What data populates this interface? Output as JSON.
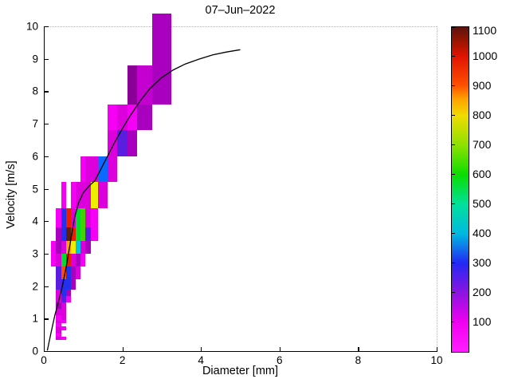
{
  "title": "07–Jun–2022",
  "axes": {
    "x_label": "Diameter [mm]",
    "y_label": "Velocity [m/s]",
    "x_ticks": [
      0,
      2,
      4,
      6,
      8,
      10
    ],
    "y_ticks": [
      0,
      1,
      2,
      3,
      4,
      5,
      6,
      7,
      8,
      9,
      10
    ],
    "x_range": [
      0,
      10
    ],
    "y_range": [
      0,
      10
    ]
  },
  "colorbar": {
    "range": [
      0,
      1100
    ],
    "tick_values": [
      100,
      200,
      300,
      400,
      500,
      600,
      700,
      800,
      900,
      1000,
      1100
    ],
    "gradient_stops": [
      {
        "pct": 0,
        "color": "#FF1EFF"
      },
      {
        "pct": 9.1,
        "color": "#F000F0"
      },
      {
        "pct": 18.2,
        "color": "#8C14E1"
      },
      {
        "pct": 27.3,
        "color": "#2328F5"
      },
      {
        "pct": 36.4,
        "color": "#00B9E1"
      },
      {
        "pct": 45.5,
        "color": "#00E19B"
      },
      {
        "pct": 54.5,
        "color": "#0ADC00"
      },
      {
        "pct": 63.6,
        "color": "#8CE100"
      },
      {
        "pct": 72.7,
        "color": "#F0DC00"
      },
      {
        "pct": 78,
        "color": "#FFA000"
      },
      {
        "pct": 82,
        "color": "#FF5000"
      },
      {
        "pct": 90.9,
        "color": "#E11400"
      },
      {
        "pct": 96,
        "color": "#961400"
      },
      {
        "pct": 100,
        "color": "#5A1410"
      }
    ]
  },
  "palette": {
    "m1": "#F500F5",
    "m2": "#DC00DC",
    "p0": "#C300CF",
    "p1": "#A800BE",
    "p2": "#8A0096",
    "vi": "#5A1EE1",
    "bl": "#2330EE",
    "bb": "#0A69FF",
    "cy": "#00C3E1",
    "g2": "#46D200",
    "gr": "#00DC28",
    "ye": "#EEEE00",
    "or": "#FFA300",
    "ro": "#FF4B00",
    "re": "#EB1E00",
    "ma": "#5F1E0F"
  },
  "chart_data": {
    "type": "heatmap",
    "title": "07–Jun–2022",
    "xlabel": "Diameter [mm]",
    "ylabel": "Velocity [m/s]",
    "xlim": [
      0,
      10
    ],
    "ylim": [
      0,
      10
    ],
    "colorbar_range": [
      0,
      1100
    ],
    "diameter_class_edges_mm": [
      0.187,
      0.312,
      0.437,
      0.562,
      0.687,
      0.812,
      0.937,
      1.062,
      1.187,
      1.375,
      1.625,
      1.875,
      2.125,
      2.375,
      2.75,
      3.25
    ],
    "velocity_class_edges_ms": [
      0.35,
      0.45,
      0.55,
      0.65,
      0.75,
      0.85,
      0.95,
      1.1,
      1.3,
      1.5,
      1.7,
      1.9,
      2.2,
      2.6,
      3.0,
      3.4,
      3.8,
      4.4,
      5.2,
      6.0,
      6.8,
      7.6,
      8.8,
      10.4
    ],
    "cells": [
      {
        "d0": 0.312,
        "d1": 0.437,
        "v0": 0.35,
        "v1": 0.45,
        "value": 110,
        "c": "m2"
      },
      {
        "d0": 0.437,
        "d1": 0.562,
        "v0": 0.35,
        "v1": 0.45,
        "value": 60,
        "c": "m1"
      },
      {
        "d0": 0.312,
        "d1": 0.437,
        "v0": 0.45,
        "v1": 0.55,
        "value": 60,
        "c": "m1"
      },
      {
        "d0": 0.312,
        "d1": 0.437,
        "v0": 0.55,
        "v1": 0.65,
        "value": 110,
        "c": "m2"
      },
      {
        "d0": 0.312,
        "d1": 0.437,
        "v0": 0.65,
        "v1": 0.75,
        "value": 110,
        "c": "m2"
      },
      {
        "d0": 0.437,
        "d1": 0.562,
        "v0": 0.65,
        "v1": 0.75,
        "value": 60,
        "c": "m1"
      },
      {
        "d0": 0.312,
        "d1": 0.437,
        "v0": 0.75,
        "v1": 0.85,
        "value": 60,
        "c": "m1"
      },
      {
        "d0": 0.312,
        "d1": 0.437,
        "v0": 0.85,
        "v1": 0.95,
        "value": 110,
        "c": "m2"
      },
      {
        "d0": 0.437,
        "d1": 0.562,
        "v0": 0.85,
        "v1": 0.95,
        "value": 60,
        "c": "m1"
      },
      {
        "d0": 0.312,
        "d1": 0.437,
        "v0": 0.95,
        "v1": 1.1,
        "value": 60,
        "c": "m1"
      },
      {
        "d0": 0.437,
        "d1": 0.562,
        "v0": 0.95,
        "v1": 1.1,
        "value": 110,
        "c": "m2"
      },
      {
        "d0": 0.312,
        "d1": 0.437,
        "v0": 1.1,
        "v1": 1.3,
        "value": 110,
        "c": "m2"
      },
      {
        "d0": 0.437,
        "d1": 0.562,
        "v0": 1.1,
        "v1": 1.3,
        "value": 110,
        "c": "m2"
      },
      {
        "d0": 0.312,
        "d1": 0.437,
        "v0": 1.3,
        "v1": 1.5,
        "value": 160,
        "c": "p1"
      },
      {
        "d0": 0.437,
        "d1": 0.562,
        "v0": 1.3,
        "v1": 1.5,
        "value": 110,
        "c": "m2"
      },
      {
        "d0": 0.312,
        "d1": 0.437,
        "v0": 1.5,
        "v1": 1.7,
        "value": 110,
        "c": "m2"
      },
      {
        "d0": 0.437,
        "d1": 0.562,
        "v0": 1.5,
        "v1": 1.7,
        "value": 250,
        "c": "vi"
      },
      {
        "d0": 0.562,
        "d1": 0.687,
        "v0": 1.5,
        "v1": 1.7,
        "value": 60,
        "c": "m1"
      },
      {
        "d0": 0.312,
        "d1": 0.437,
        "v0": 1.7,
        "v1": 1.9,
        "value": 110,
        "c": "m2"
      },
      {
        "d0": 0.437,
        "d1": 0.562,
        "v0": 1.7,
        "v1": 1.9,
        "value": 300,
        "c": "bl"
      },
      {
        "d0": 0.562,
        "d1": 0.687,
        "v0": 1.7,
        "v1": 1.9,
        "value": 160,
        "c": "p1"
      },
      {
        "d0": 0.312,
        "d1": 0.437,
        "v0": 1.9,
        "v1": 2.2,
        "value": 250,
        "c": "vi"
      },
      {
        "d0": 0.437,
        "d1": 0.562,
        "v0": 1.9,
        "v1": 2.2,
        "value": 300,
        "c": "bl"
      },
      {
        "d0": 0.562,
        "d1": 0.687,
        "v0": 1.9,
        "v1": 2.2,
        "value": 300,
        "c": "bl"
      },
      {
        "d0": 0.687,
        "d1": 0.812,
        "v0": 1.9,
        "v1": 2.2,
        "value": 160,
        "c": "p1"
      },
      {
        "d0": 0.312,
        "d1": 0.437,
        "v0": 2.2,
        "v1": 2.6,
        "value": 250,
        "c": "vi"
      },
      {
        "d0": 0.437,
        "d1": 0.562,
        "v0": 2.2,
        "v1": 2.6,
        "value": 890,
        "c": "ro"
      },
      {
        "d0": 0.562,
        "d1": 0.687,
        "v0": 2.2,
        "v1": 2.6,
        "value": 300,
        "c": "bl"
      },
      {
        "d0": 0.687,
        "d1": 0.812,
        "v0": 2.2,
        "v1": 2.6,
        "value": 160,
        "c": "p1"
      },
      {
        "d0": 0.812,
        "d1": 0.937,
        "v0": 2.2,
        "v1": 2.6,
        "value": 110,
        "c": "m2"
      },
      {
        "d0": 0.187,
        "d1": 0.312,
        "v0": 2.6,
        "v1": 3.0,
        "value": 60,
        "c": "m1"
      },
      {
        "d0": 0.312,
        "d1": 0.437,
        "v0": 2.6,
        "v1": 3.0,
        "value": 110,
        "c": "m2"
      },
      {
        "d0": 0.437,
        "d1": 0.562,
        "v0": 2.6,
        "v1": 3.0,
        "value": 560,
        "c": "gr"
      },
      {
        "d0": 0.562,
        "d1": 0.687,
        "v0": 2.6,
        "v1": 3.0,
        "value": 960,
        "c": "re"
      },
      {
        "d0": 0.687,
        "d1": 0.812,
        "v0": 2.6,
        "v1": 3.0,
        "value": 110,
        "c": "m2"
      },
      {
        "d0": 0.812,
        "d1": 0.937,
        "v0": 2.6,
        "v1": 3.0,
        "value": 160,
        "c": "p1"
      },
      {
        "d0": 0.937,
        "d1": 1.062,
        "v0": 2.6,
        "v1": 3.0,
        "value": 60,
        "c": "m1"
      },
      {
        "d0": 0.187,
        "d1": 0.312,
        "v0": 3.0,
        "v1": 3.4,
        "value": 60,
        "c": "m1"
      },
      {
        "d0": 0.312,
        "d1": 0.437,
        "v0": 3.0,
        "v1": 3.4,
        "value": 160,
        "c": "p1"
      },
      {
        "d0": 0.437,
        "d1": 0.562,
        "v0": 3.0,
        "v1": 3.4,
        "value": 110,
        "c": "m2"
      },
      {
        "d0": 0.562,
        "d1": 0.687,
        "v0": 3.0,
        "v1": 3.4,
        "value": 830,
        "c": "or"
      },
      {
        "d0": 0.687,
        "d1": 0.812,
        "v0": 3.0,
        "v1": 3.4,
        "value": 750,
        "c": "ye"
      },
      {
        "d0": 0.812,
        "d1": 0.937,
        "v0": 3.0,
        "v1": 3.4,
        "value": 430,
        "c": "cy"
      },
      {
        "d0": 0.937,
        "d1": 1.062,
        "v0": 3.0,
        "v1": 3.4,
        "value": 110,
        "c": "m2"
      },
      {
        "d0": 1.062,
        "d1": 1.187,
        "v0": 3.0,
        "v1": 3.4,
        "value": 160,
        "c": "p1"
      },
      {
        "d0": 0.312,
        "d1": 0.437,
        "v0": 3.4,
        "v1": 3.8,
        "value": 160,
        "c": "p1"
      },
      {
        "d0": 0.437,
        "d1": 0.562,
        "v0": 3.4,
        "v1": 3.8,
        "value": 300,
        "c": "bl"
      },
      {
        "d0": 0.562,
        "d1": 0.687,
        "v0": 3.4,
        "v1": 3.8,
        "value": 1090,
        "c": "ma"
      },
      {
        "d0": 0.687,
        "d1": 0.812,
        "v0": 3.4,
        "v1": 3.8,
        "value": 960,
        "c": "re"
      },
      {
        "d0": 0.812,
        "d1": 0.937,
        "v0": 3.4,
        "v1": 3.8,
        "value": 560,
        "c": "gr"
      },
      {
        "d0": 0.937,
        "d1": 1.062,
        "v0": 3.4,
        "v1": 3.8,
        "value": 510,
        "c": "g2"
      },
      {
        "d0": 1.062,
        "d1": 1.187,
        "v0": 3.4,
        "v1": 3.8,
        "value": 250,
        "c": "vi"
      },
      {
        "d0": 1.187,
        "d1": 1.375,
        "v0": 3.4,
        "v1": 3.8,
        "value": 60,
        "c": "m1"
      },
      {
        "d0": 0.312,
        "d1": 0.437,
        "v0": 3.8,
        "v1": 4.4,
        "value": 60,
        "c": "m1"
      },
      {
        "d0": 0.437,
        "d1": 0.562,
        "v0": 3.8,
        "v1": 4.4,
        "value": 300,
        "c": "bl"
      },
      {
        "d0": 0.562,
        "d1": 0.687,
        "v0": 3.8,
        "v1": 4.4,
        "value": 960,
        "c": "re"
      },
      {
        "d0": 0.687,
        "d1": 0.812,
        "v0": 3.8,
        "v1": 4.4,
        "value": 110,
        "c": "m2"
      },
      {
        "d0": 0.812,
        "d1": 0.937,
        "v0": 3.8,
        "v1": 4.4,
        "value": 560,
        "c": "gr"
      },
      {
        "d0": 0.937,
        "d1": 1.062,
        "v0": 3.8,
        "v1": 4.4,
        "value": 510,
        "c": "g2"
      },
      {
        "d0": 1.062,
        "d1": 1.187,
        "v0": 3.8,
        "v1": 4.4,
        "value": 110,
        "c": "m2"
      },
      {
        "d0": 1.187,
        "d1": 1.375,
        "v0": 3.8,
        "v1": 4.4,
        "value": 60,
        "c": "m1"
      },
      {
        "d0": 0.437,
        "d1": 0.562,
        "v0": 4.4,
        "v1": 5.2,
        "value": 60,
        "c": "m1"
      },
      {
        "d0": 0.687,
        "d1": 0.812,
        "v0": 4.4,
        "v1": 5.2,
        "value": 60,
        "c": "m1"
      },
      {
        "d0": 0.812,
        "d1": 0.937,
        "v0": 4.4,
        "v1": 5.2,
        "value": 110,
        "c": "m2"
      },
      {
        "d0": 0.937,
        "d1": 1.062,
        "v0": 4.4,
        "v1": 5.2,
        "value": 110,
        "c": "m2"
      },
      {
        "d0": 1.062,
        "d1": 1.187,
        "v0": 4.4,
        "v1": 5.2,
        "value": 110,
        "c": "m2"
      },
      {
        "d0": 1.187,
        "d1": 1.375,
        "v0": 4.4,
        "v1": 5.2,
        "value": 750,
        "c": "ye"
      },
      {
        "d0": 1.375,
        "d1": 1.625,
        "v0": 4.4,
        "v1": 5.2,
        "value": 110,
        "c": "m2"
      },
      {
        "d0": 0.937,
        "d1": 1.062,
        "v0": 5.2,
        "v1": 6.0,
        "value": 60,
        "c": "m1"
      },
      {
        "d0": 1.062,
        "d1": 1.187,
        "v0": 5.2,
        "v1": 6.0,
        "value": 110,
        "c": "m2"
      },
      {
        "d0": 1.187,
        "d1": 1.375,
        "v0": 5.2,
        "v1": 6.0,
        "value": 110,
        "c": "m2"
      },
      {
        "d0": 1.375,
        "d1": 1.625,
        "v0": 5.2,
        "v1": 6.0,
        "value": 340,
        "c": "bb"
      },
      {
        "d0": 1.625,
        "d1": 1.875,
        "v0": 5.2,
        "v1": 6.0,
        "value": 110,
        "c": "m2"
      },
      {
        "d0": 1.625,
        "d1": 1.875,
        "v0": 6.0,
        "v1": 6.8,
        "value": 110,
        "c": "m2"
      },
      {
        "d0": 1.875,
        "d1": 2.125,
        "v0": 6.0,
        "v1": 6.8,
        "value": 250,
        "c": "vi"
      },
      {
        "d0": 2.125,
        "d1": 2.375,
        "v0": 6.0,
        "v1": 6.8,
        "value": 160,
        "c": "p1"
      },
      {
        "d0": 1.625,
        "d1": 1.875,
        "v0": 6.8,
        "v1": 7.6,
        "value": 60,
        "c": "m1"
      },
      {
        "d0": 1.875,
        "d1": 2.125,
        "v0": 6.8,
        "v1": 7.6,
        "value": 110,
        "c": "m2"
      },
      {
        "d0": 2.125,
        "d1": 2.375,
        "v0": 6.8,
        "v1": 7.6,
        "value": 60,
        "c": "m1"
      },
      {
        "d0": 2.375,
        "d1": 2.75,
        "v0": 6.8,
        "v1": 7.6,
        "value": 160,
        "c": "p1"
      },
      {
        "d0": 2.125,
        "d1": 2.375,
        "v0": 7.6,
        "v1": 8.8,
        "value": 190,
        "c": "p2"
      },
      {
        "d0": 2.375,
        "d1": 2.75,
        "v0": 7.6,
        "v1": 8.8,
        "value": 130,
        "c": "p0"
      },
      {
        "d0": 2.75,
        "d1": 3.25,
        "v0": 7.6,
        "v1": 8.8,
        "value": 160,
        "c": "p1"
      },
      {
        "d0": 2.75,
        "d1": 3.25,
        "v0": 8.8,
        "v1": 10.4,
        "value": 160,
        "c": "p1"
      }
    ],
    "curve": {
      "name": "terminal-velocity-curve",
      "color": "#000000",
      "points": [
        [
          0.09,
          0.02
        ],
        [
          0.18,
          0.55
        ],
        [
          0.28,
          1.1
        ],
        [
          0.38,
          1.55
        ],
        [
          0.48,
          2.05
        ],
        [
          0.57,
          2.6
        ],
        [
          0.64,
          3.1
        ],
        [
          0.71,
          3.6
        ],
        [
          0.78,
          4.1
        ],
        [
          0.88,
          4.55
        ],
        [
          1.0,
          4.87
        ],
        [
          1.15,
          5.08
        ],
        [
          1.3,
          5.25
        ],
        [
          1.45,
          5.6
        ],
        [
          1.62,
          6.0
        ],
        [
          1.8,
          6.42
        ],
        [
          2.0,
          6.85
        ],
        [
          2.2,
          7.25
        ],
        [
          2.45,
          7.7
        ],
        [
          2.7,
          8.08
        ],
        [
          3.0,
          8.42
        ],
        [
          3.3,
          8.66
        ],
        [
          3.6,
          8.84
        ],
        [
          3.95,
          8.99
        ],
        [
          4.3,
          9.12
        ],
        [
          4.65,
          9.21
        ],
        [
          5.0,
          9.28
        ]
      ]
    }
  }
}
